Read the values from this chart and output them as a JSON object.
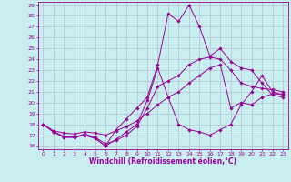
{
  "xlabel": "Windchill (Refroidissement éolien,°C)",
  "bg_color": "#c8eef0",
  "line_color": "#990099",
  "grid_color": "#b0b8cc",
  "xlim": [
    -0.5,
    23.5
  ],
  "ylim": [
    15.7,
    29.3
  ],
  "yticks": [
    16,
    17,
    18,
    19,
    20,
    21,
    22,
    23,
    24,
    25,
    26,
    27,
    28,
    29
  ],
  "xticks": [
    0,
    1,
    2,
    3,
    4,
    5,
    6,
    7,
    8,
    9,
    10,
    11,
    12,
    13,
    14,
    15,
    16,
    17,
    18,
    19,
    20,
    21,
    22,
    23
  ],
  "line1_x": [
    0,
    1,
    2,
    3,
    4,
    5,
    6,
    7,
    8,
    9,
    10,
    11,
    12,
    13,
    14,
    15,
    16,
    17,
    18,
    19,
    20,
    21,
    22,
    23
  ],
  "line1_y": [
    18,
    17.3,
    16.8,
    16.8,
    17.0,
    16.7,
    16.0,
    16.6,
    17.3,
    18.0,
    20.2,
    23.2,
    20.5,
    18.0,
    17.5,
    17.3,
    17.0,
    17.5,
    18.0,
    19.8,
    21.0,
    22.5,
    21.0,
    20.7
  ],
  "line2_x": [
    0,
    1,
    2,
    3,
    4,
    5,
    6,
    7,
    8,
    9,
    10,
    11,
    12,
    13,
    14,
    15,
    16,
    17,
    18,
    19,
    20,
    21,
    22,
    23
  ],
  "line2_y": [
    18,
    17.3,
    16.8,
    16.8,
    17.0,
    16.7,
    16.0,
    17.5,
    18.5,
    19.5,
    20.5,
    23.5,
    28.2,
    27.5,
    29.0,
    27.0,
    24.3,
    25.0,
    23.8,
    23.2,
    23.0,
    21.8,
    20.7,
    20.5
  ],
  "line3_x": [
    0,
    1,
    2,
    3,
    4,
    5,
    6,
    7,
    8,
    9,
    10,
    11,
    12,
    13,
    14,
    15,
    16,
    17,
    18,
    19,
    20,
    21,
    22,
    23
  ],
  "line3_y": [
    18,
    17.4,
    17.2,
    17.1,
    17.3,
    17.2,
    17.0,
    17.4,
    17.8,
    18.3,
    19.0,
    19.8,
    20.5,
    21.0,
    21.8,
    22.5,
    23.2,
    23.5,
    19.5,
    20.0,
    19.8,
    20.5,
    20.8,
    20.8
  ],
  "line4_x": [
    0,
    1,
    2,
    3,
    4,
    5,
    6,
    7,
    8,
    9,
    10,
    11,
    12,
    13,
    14,
    15,
    16,
    17,
    18,
    19,
    20,
    21,
    22,
    23
  ],
  "line4_y": [
    18,
    17.3,
    16.9,
    16.8,
    17.1,
    16.8,
    16.2,
    16.5,
    17.0,
    17.8,
    19.5,
    21.5,
    22.0,
    22.5,
    23.5,
    24.0,
    24.2,
    24.0,
    23.0,
    21.8,
    21.5,
    21.3,
    21.2,
    21.0
  ],
  "tick_fontsize": 4.5,
  "xlabel_fontsize": 5.5
}
